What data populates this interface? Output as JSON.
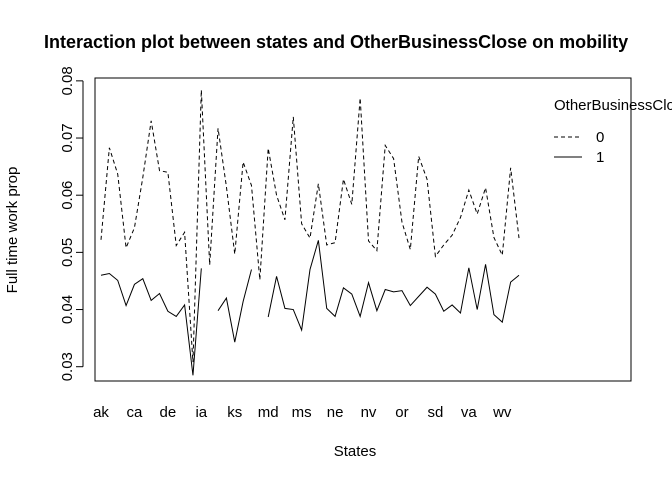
{
  "chart_data": {
    "type": "line",
    "title": "Interaction plot between states and OtherBusinessClose on mobility",
    "xlabel": "States",
    "ylabel": "Full time work prop",
    "ylim": [
      0.0275,
      0.0805
    ],
    "yticks": [
      "0.03",
      "0.04",
      "0.05",
      "0.06",
      "0.07",
      "0.08"
    ],
    "xtick_labels": [
      "ak",
      "ca",
      "de",
      "ia",
      "ks",
      "md",
      "ms",
      "ne",
      "nv",
      "or",
      "sd",
      "va",
      "wv"
    ],
    "xtick_indices": [
      1,
      5,
      9,
      13,
      17,
      21,
      25,
      29,
      33,
      37,
      41,
      45,
      49
    ],
    "x_count": 51,
    "grid": false,
    "legend": {
      "title": "OtherBusinessClose",
      "placement": "top-right",
      "entries": [
        "0",
        "1"
      ]
    },
    "series": [
      {
        "name": "0",
        "linestyle": "dashed",
        "values": [
          0.0522,
          0.0683,
          0.0637,
          0.0508,
          0.0543,
          0.0631,
          0.073,
          0.0643,
          0.064,
          0.0512,
          0.0535,
          0.0308,
          0.0784,
          0.0478,
          0.0717,
          0.0615,
          0.0497,
          0.0658,
          0.0617,
          0.0452,
          0.0682,
          0.06,
          0.0557,
          0.0737,
          0.055,
          0.0525,
          0.062,
          0.0513,
          0.0517,
          0.0628,
          0.0584,
          0.077,
          0.052,
          0.0503,
          0.0687,
          0.0664,
          0.0553,
          0.0505,
          0.0668,
          0.0628,
          0.0493,
          0.0513,
          0.053,
          0.0561,
          0.0609,
          0.0567,
          0.0613,
          0.0526,
          0.0495,
          0.0648,
          0.0525
        ]
      },
      {
        "name": "1",
        "linestyle": "solid",
        "values": [
          0.046,
          0.0463,
          0.0451,
          0.0407,
          0.0444,
          0.0454,
          0.0416,
          0.0428,
          0.0397,
          0.0388,
          0.0408,
          0.0285,
          0.0472,
          null,
          0.0398,
          0.042,
          0.0343,
          0.0414,
          0.047,
          null,
          0.0387,
          0.0458,
          0.0402,
          0.04,
          0.0364,
          0.047,
          0.0521,
          0.0402,
          0.0388,
          0.0438,
          0.0427,
          0.0388,
          0.0447,
          0.0398,
          0.0435,
          0.0431,
          0.0433,
          0.0407,
          0.0423,
          0.0439,
          0.0427,
          0.0397,
          0.0408,
          0.0394,
          0.0473,
          0.04,
          0.0479,
          0.0391,
          0.0378,
          0.0448,
          0.046
        ]
      }
    ]
  }
}
